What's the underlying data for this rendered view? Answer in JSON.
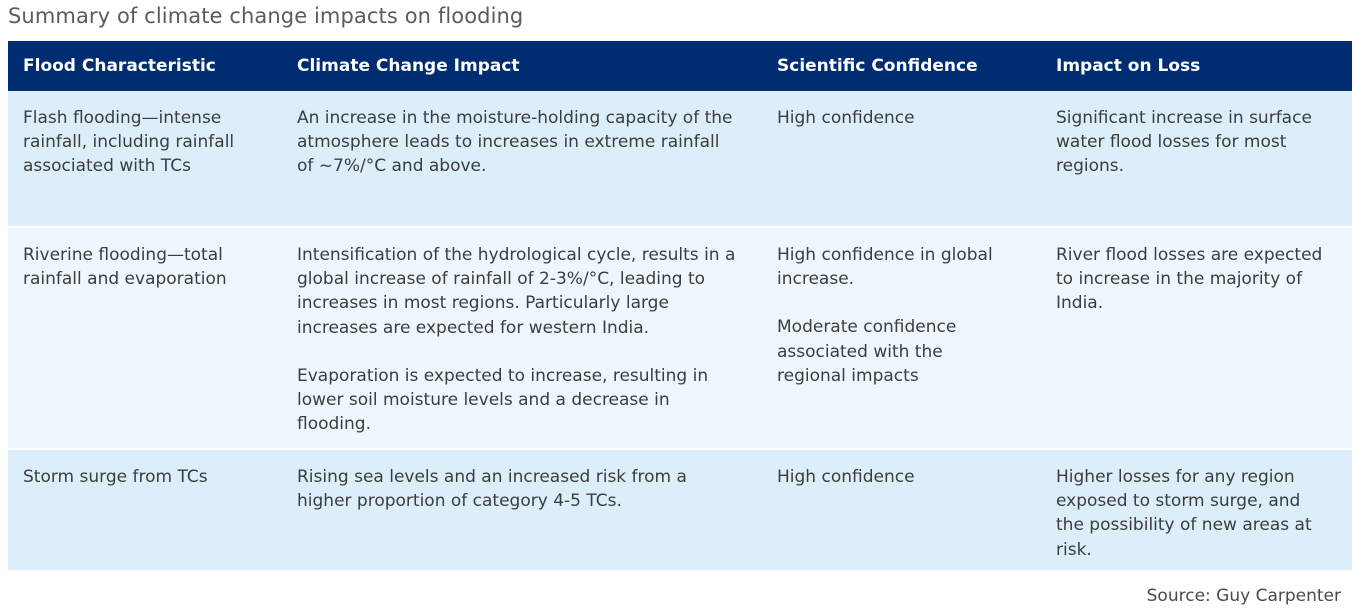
{
  "title": "Summary of climate change impacts on flooding",
  "table": {
    "headers": [
      "Flood Characteristic",
      "Climate Change Impact",
      "Scientific Confidence",
      "Impact on Loss"
    ],
    "rows": [
      {
        "characteristic": "Flash flooding—intense rainfall, including rainfall associated with TCs",
        "impact": [
          "An increase in the moisture-holding capacity of the atmosphere leads to increases in extreme rainfall of ~7%/°C and above."
        ],
        "confidence": [
          "High confidence"
        ],
        "loss": "Significant increase in surface water flood losses for most regions."
      },
      {
        "characteristic": "Riverine flooding—total rainfall and evaporation",
        "impact": [
          "Intensification of the hydrological cycle, results in a global increase of rainfall of 2-3%/°C, leading to increases in most regions. Particularly large increases are expected for western India.",
          "Evaporation is expected to increase, resulting in lower soil moisture levels and a decrease in flooding."
        ],
        "confidence": [
          "High confidence in global increase.",
          "Moderate confidence associated with the regional impacts"
        ],
        "loss": "River flood losses are expected to increase in the majority of India."
      },
      {
        "characteristic": "Storm surge from TCs",
        "impact": [
          "Rising sea levels and an increased risk from a higher proportion of category 4-5 TCs."
        ],
        "confidence": [
          "High confidence"
        ],
        "loss": "Higher losses for any region exposed to storm surge, and the possibility of new areas at risk."
      }
    ]
  },
  "source": "Source: Guy Carpenter",
  "colors": {
    "header_bg": "#002d72",
    "row_dark": "#dbeefa",
    "row_light": "#edf7fd"
  }
}
